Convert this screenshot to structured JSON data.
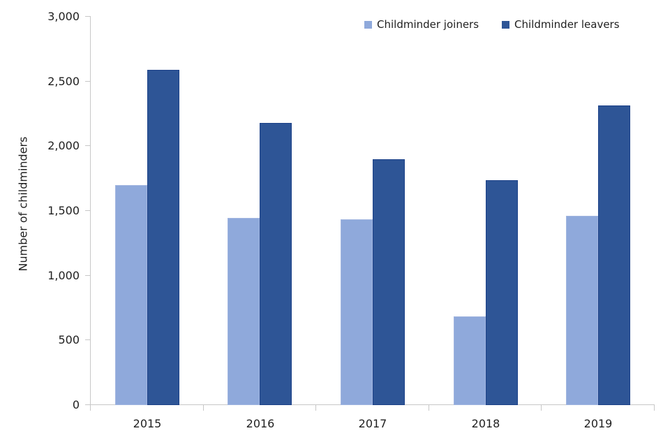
{
  "chart_data": {
    "type": "bar",
    "categories": [
      "2015",
      "2016",
      "2017",
      "2018",
      "2019"
    ],
    "series": [
      {
        "name": "Childminder joiners",
        "color": "#8fa9db",
        "border_color": "#a2b6e0",
        "values": [
          1700,
          1445,
          1435,
          685,
          1460
        ]
      },
      {
        "name": "Childminder leavers",
        "color": "#2e5596",
        "border_color": "#1d4289",
        "values": [
          2590,
          2180,
          1900,
          1735,
          2315
        ]
      }
    ],
    "ylabel": "Number of childminders",
    "ylim": [
      0,
      3000
    ],
    "ytick_interval": 500,
    "ytick_labels": [
      "0",
      "500",
      "1,000",
      "1,500",
      "2,000",
      "2,500",
      "3,000"
    ],
    "grid": false,
    "legend_position": "top-right"
  },
  "colors": {
    "axis_line": "#c7c7c7",
    "text": "#1f1f1f",
    "background": "#ffffff"
  }
}
